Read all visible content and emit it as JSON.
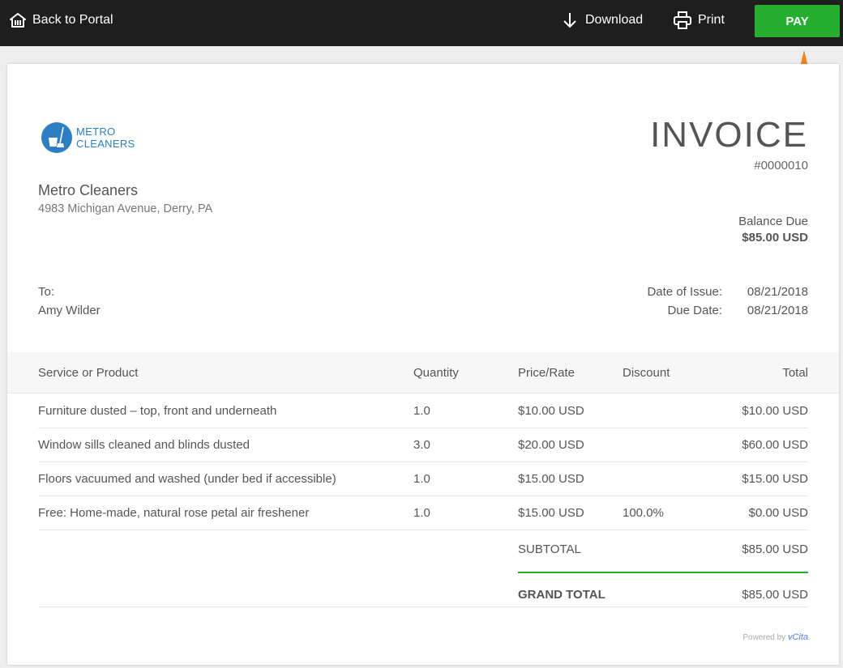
{
  "topbar": {
    "back_label": "Back to Portal",
    "download_label": "Download",
    "print_label": "Print",
    "pay_label": "PAY"
  },
  "colors": {
    "pay_green": "#27ae2e",
    "topbar": "#1e1e1e",
    "logo_blue": "#2d7ec2",
    "annotation_arrow": "#f5831f"
  },
  "logo": {
    "line1": "METRO",
    "line2": "CLEANERS"
  },
  "invoice": {
    "title": "INVOICE",
    "number": "#0000010",
    "business_name": "Metro Cleaners",
    "business_address": "4983 Michigan Avenue, Derry, PA",
    "balance_label": "Balance Due",
    "balance_amount": "$85.00 USD",
    "to_label": "To:",
    "to_name": "Amy Wilder",
    "issue_label": "Date of Issue:",
    "issue_date": "08/21/2018",
    "due_label": "Due Date:",
    "due_date": "08/21/2018"
  },
  "table": {
    "headers": [
      "Service or Product",
      "Quantity",
      "Price/Rate",
      "Discount",
      "Total"
    ],
    "rows": [
      {
        "service": "Furniture dusted – top, front and underneath",
        "qty": "1.0",
        "price": "$10.00 USD",
        "discount": "",
        "total": "$10.00 USD"
      },
      {
        "service": "Window sills cleaned and blinds dusted",
        "qty": "3.0",
        "price": "$20.00 USD",
        "discount": "",
        "total": "$60.00 USD"
      },
      {
        "service": "Floors vacuumed and washed (under bed if accessible)",
        "qty": "1.0",
        "price": "$15.00 USD",
        "discount": "",
        "total": "$15.00 USD"
      },
      {
        "service": "Free: Home-made, natural rose petal air freshener",
        "qty": "1.0",
        "price": "$15.00 USD",
        "discount": "100.0%",
        "total": "$0.00 USD"
      }
    ]
  },
  "totals": {
    "subtotal_label": "SUBTOTAL",
    "subtotal_value": "$85.00 USD",
    "grand_label": "GRAND TOTAL",
    "grand_value": "$85.00 USD"
  },
  "footer": {
    "powered_prefix": "Powered by",
    "powered_brand": "vCita"
  }
}
